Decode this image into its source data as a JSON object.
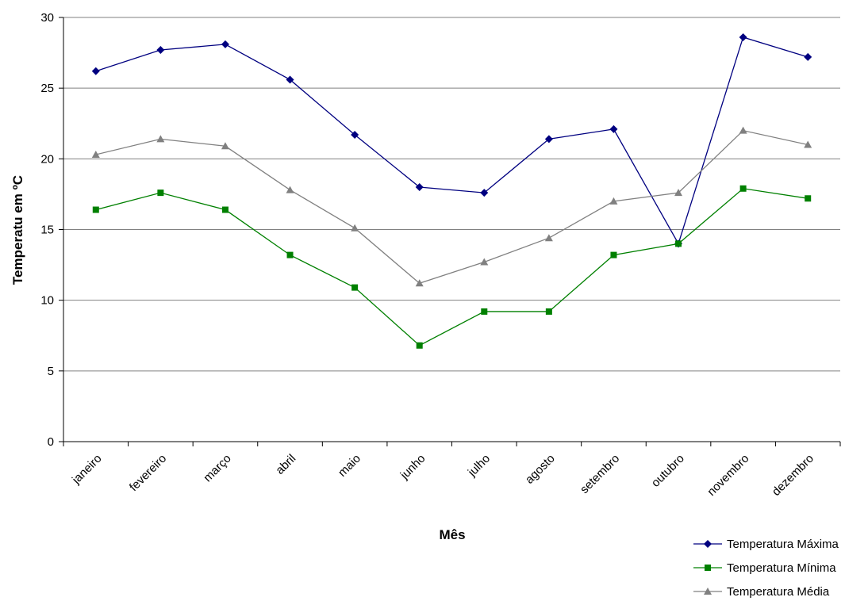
{
  "chart_data": {
    "type": "line",
    "title": "",
    "xlabel": "Mês",
    "ylabel": "Temperatu em ºC",
    "ylim": [
      0,
      30
    ],
    "yticks": [
      0,
      5,
      10,
      15,
      20,
      25,
      30
    ],
    "grid": true,
    "legend_position": "bottom-right",
    "categories": [
      "janeiro",
      "fevereiro",
      "março",
      "abril",
      "maio",
      "junho",
      "julho",
      "agosto",
      "setembro",
      "outubro",
      "novembro",
      "dezembro"
    ],
    "series": [
      {
        "name": "Temperatura Máxima",
        "color": "#000080",
        "marker": "diamond",
        "values": [
          26.2,
          27.7,
          28.1,
          25.6,
          21.7,
          18.0,
          17.6,
          21.4,
          22.1,
          14.0,
          28.6,
          27.2
        ]
      },
      {
        "name": "Temperatura Mínima",
        "color": "#008000",
        "marker": "square",
        "values": [
          16.4,
          17.6,
          16.4,
          13.2,
          10.9,
          6.8,
          9.2,
          9.2,
          13.2,
          14.0,
          17.9,
          17.2
        ]
      },
      {
        "name": "Temperatura Média",
        "color": "#808080",
        "marker": "triangle",
        "values": [
          20.3,
          21.4,
          20.9,
          17.8,
          15.1,
          11.2,
          12.7,
          14.4,
          17.0,
          17.6,
          22.0,
          21.0
        ]
      }
    ]
  }
}
